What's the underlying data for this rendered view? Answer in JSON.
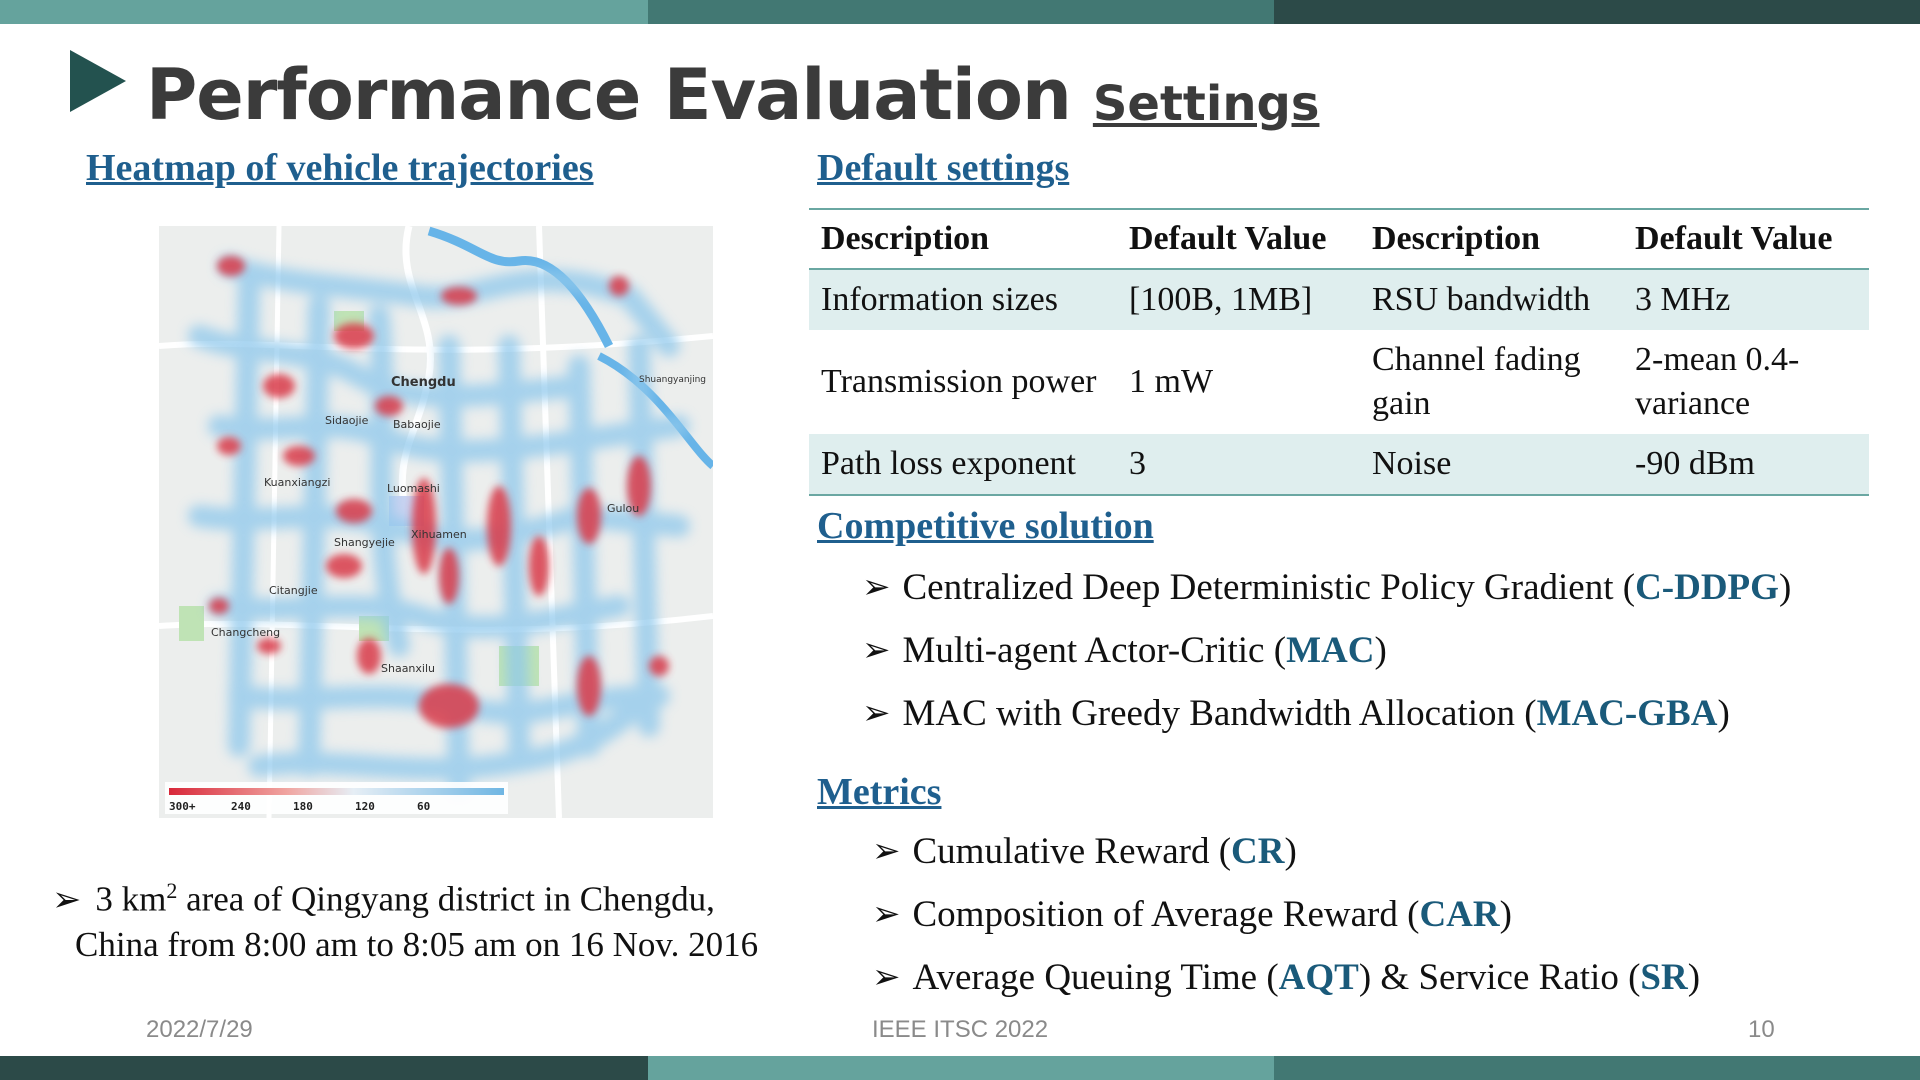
{
  "colors": {
    "bar_light": "#65a39d",
    "bar_mid": "#427873",
    "bar_dark": "#2c4a48",
    "accent": "#1f5f8e",
    "highlight": "#1a5a7a"
  },
  "title": {
    "main": "Performance Evaluation",
    "sub": "Settings"
  },
  "left": {
    "heading": "Heatmap of vehicle trajectories",
    "map": {
      "place_labels": [
        "Chengdu",
        "Sidaojie",
        "Babaojie",
        "Kuanxiangzi",
        "Luomashi",
        "Shangyejie",
        "Xihuamen",
        "Citangjie",
        "Changcheng",
        "Shaanxilu",
        "Shuangyanjing",
        "Gulou"
      ],
      "legend_ticks": [
        "300+",
        "240",
        "180",
        "120",
        "60"
      ]
    },
    "bullet_pre": "3 km",
    "bullet_sup": "2",
    "bullet_line1_rest": " area of Qingyang district in Chengdu,",
    "bullet_line2": "China from 8:00 am to 8:05 am on 16 Nov. 2016"
  },
  "defaults": {
    "heading": "Default settings",
    "headers": [
      "Description",
      "Default Value",
      "Description",
      "Default Value"
    ],
    "rows": [
      [
        "Information sizes",
        "[100B, 1MB]",
        "RSU bandwidth",
        "3 MHz"
      ],
      [
        "Transmission power",
        "1 mW",
        "Channel fading gain",
        "2-mean 0.4-variance"
      ],
      [
        "Path loss exponent",
        "3",
        "Noise",
        "-90 dBm"
      ]
    ]
  },
  "competitive": {
    "heading": "Competitive solution",
    "items": [
      {
        "pre": "Centralized Deep Deterministic Policy Gradient (",
        "abbr": "C-DDPG",
        "post": ")"
      },
      {
        "pre": "Multi-agent Actor-Critic (",
        "abbr": "MAC",
        "post": ")"
      },
      {
        "pre": "MAC with Greedy Bandwidth Allocation (",
        "abbr": "MAC-GBA",
        "post": ")"
      }
    ]
  },
  "metrics": {
    "heading": "Metrics",
    "items": [
      {
        "pre": "Cumulative Reward (",
        "abbr": "CR",
        "post": ")"
      },
      {
        "pre": "Composition of Average Reward (",
        "abbr": "CAR",
        "post": ")"
      },
      {
        "pre": "Average Queuing Time (",
        "abbr": "AQT",
        "mid": ") & Service Ratio (",
        "abbr2": "SR",
        "post": ")"
      }
    ]
  },
  "footer": {
    "date": "2022/7/29",
    "conference": "IEEE ITSC 2022",
    "page": "10"
  }
}
